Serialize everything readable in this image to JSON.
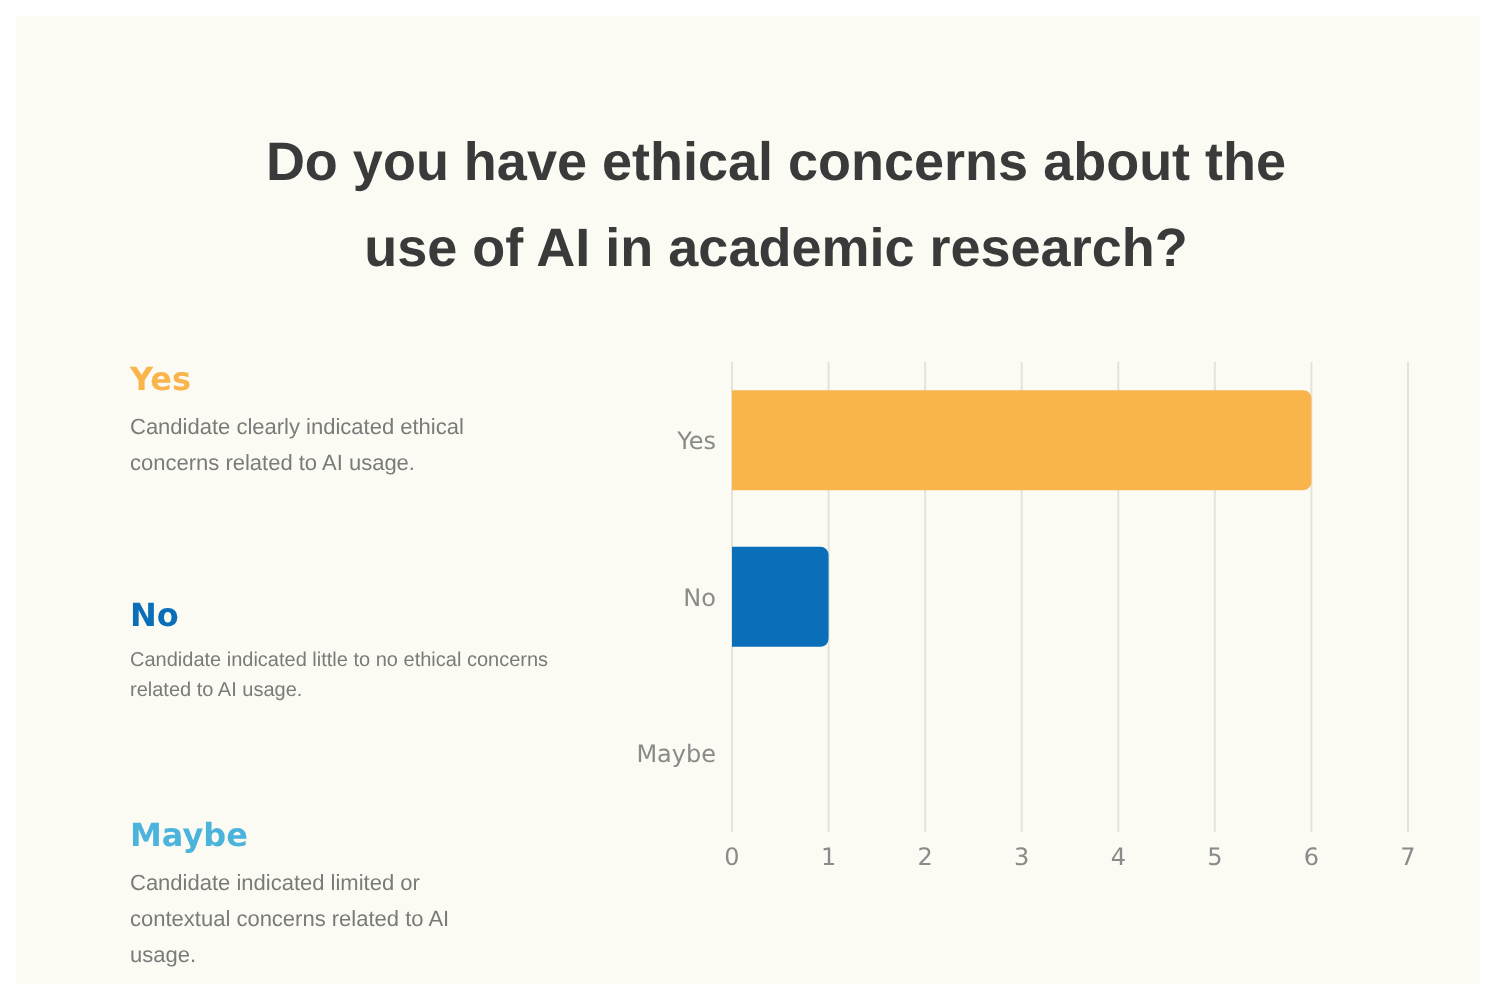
{
  "chart_data": {
    "type": "bar",
    "orientation": "horizontal",
    "title": "Do you have ethical concerns about the use of AI in academic research?",
    "categories": [
      "Yes",
      "No",
      "Maybe"
    ],
    "values": [
      6,
      1,
      0
    ],
    "colors": [
      "#f9b54c",
      "#0a6eb8",
      "#4bb3dc"
    ],
    "xlim": [
      0,
      7
    ],
    "xticks": [
      0,
      1,
      2,
      3,
      4,
      5,
      6,
      7
    ],
    "grid": "x",
    "annotations": [
      "Candidate clearly indicated ethical concerns related to AI usage.",
      "Candidate indicated little to no ethical concerns related to AI usage.",
      "Candidate indicated limited or contextual concerns related to AI usage."
    ]
  }
}
